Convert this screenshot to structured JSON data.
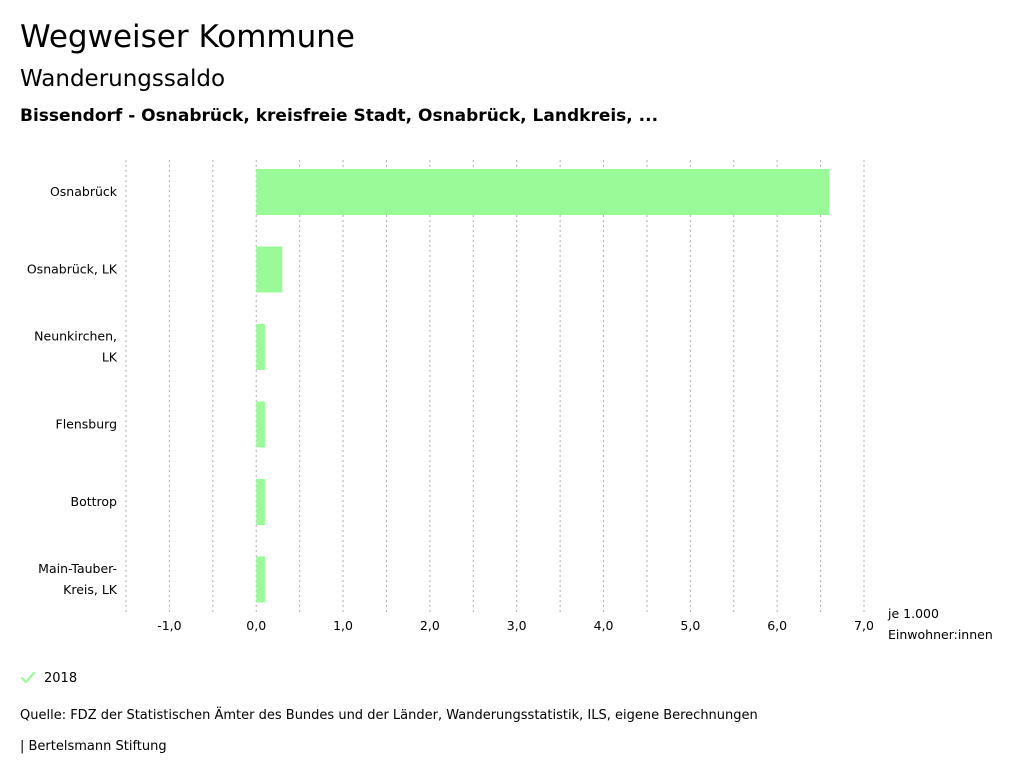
{
  "header": {
    "title": "Wegweiser Kommune",
    "subtitle": "Wanderungssaldo",
    "region": "Bissendorf - Osnabrück, kreisfreie Stadt, Osnabrück, Landkreis, ..."
  },
  "colors": {
    "bar": "#98fb98",
    "grid": "#b0b0b0",
    "text": "#000000"
  },
  "chart_data": {
    "type": "bar",
    "orientation": "horizontal",
    "categories": [
      [
        "Osnabrück"
      ],
      [
        "Osnabrück, LK"
      ],
      [
        "Neunkirchen,",
        "LK"
      ],
      [
        "Flensburg"
      ],
      [
        "Bottrop"
      ],
      [
        "Main-Tauber-",
        "Kreis, LK"
      ]
    ],
    "series": [
      {
        "name": "2018",
        "values": [
          6.6,
          0.3,
          0.1,
          0.1,
          0.1,
          0.1
        ]
      }
    ],
    "xlim": [
      -1.5,
      7.0
    ],
    "xticks": [
      -1.0,
      0.0,
      1.0,
      2.0,
      3.0,
      4.0,
      5.0,
      6.0,
      7.0
    ],
    "xtick_labels": [
      "-1,0",
      "0,0",
      "1,0",
      "2,0",
      "3,0",
      "4,0",
      "5,0",
      "6,0",
      "7,0"
    ],
    "minor_step": 0.5,
    "xlabel": [
      "je 1.000",
      "Einwohner:innen"
    ],
    "legend": "bottom-left"
  },
  "legend": {
    "label": "2018",
    "icon": "check-icon"
  },
  "footer": {
    "source": "Quelle: FDZ der Statistischen Ämter des Bundes und der Länder, Wanderungsstatistik, ILS, eigene Berechnungen",
    "brand": "| Bertelsmann Stiftung"
  }
}
